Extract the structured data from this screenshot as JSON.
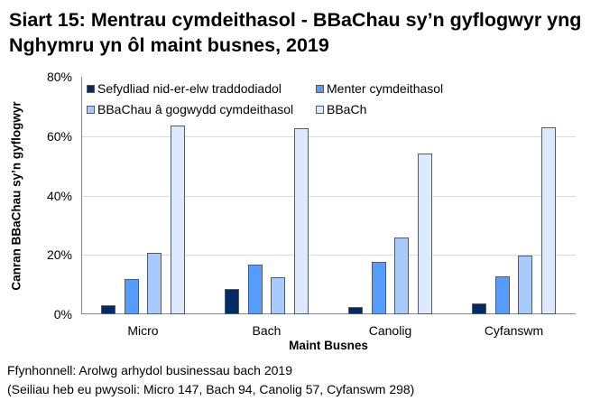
{
  "title": "Siart 15: Mentrau cymdeithasol - BBaChau sy’n gyflogwyr yng Nghymru yn ôl maint busnes, 2019",
  "footer": {
    "source": "Ffynhonnell: Arolwg arhydol businessau bach 2019",
    "bases": "(Seiliau heb eu pwysoli: Micro 147, Bach 94, Canolig 57, Cyfanswm 298)"
  },
  "chart_data": {
    "type": "bar",
    "title": "Siart 15: Mentrau cymdeithasol - BBaChau sy’n gyflogwyr yng Nghymru yn ôl maint busnes, 2019",
    "xlabel": "Maint Busnes",
    "ylabel": "Canran BBaChau sy’n gyflogwyr",
    "categories": [
      "Micro",
      "Bach",
      "Canolig",
      "Cyfanswm"
    ],
    "yticks": [
      "0%",
      "20%",
      "40%",
      "60%",
      "80%"
    ],
    "ylim": [
      0,
      80
    ],
    "grid": true,
    "legend_position": "top-inside",
    "series": [
      {
        "name": "Sefydliad nid-er-elw traddodiadol",
        "color": "#002b66",
        "values": [
          3.0,
          8.5,
          2.4,
          3.6
        ]
      },
      {
        "name": "Menter cymdeithasol",
        "color": "#559dff",
        "values": [
          11.9,
          16.7,
          17.6,
          12.8
        ]
      },
      {
        "name": "BBaChau â gogwydd cymdeithasol",
        "color": "#a8cbff",
        "values": [
          20.7,
          12.5,
          25.8,
          19.8
        ]
      },
      {
        "name": "BBaCh",
        "color": "#dceaff",
        "values": [
          63.5,
          62.7,
          54.1,
          63.0
        ]
      }
    ]
  }
}
